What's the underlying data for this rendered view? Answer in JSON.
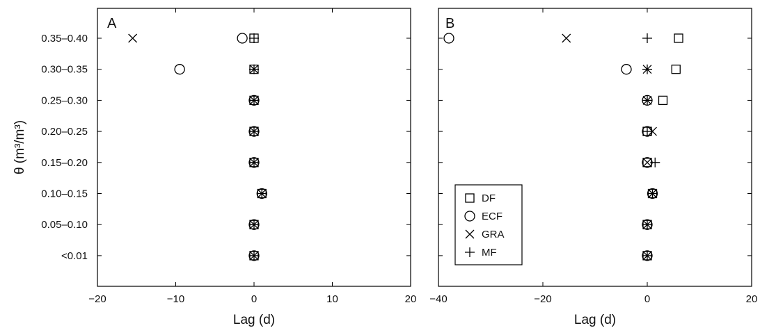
{
  "chart_data": [
    {
      "type": "scatter",
      "panel_label": "A",
      "xlabel": "Lag (d)",
      "ylabel": "θ (m³/m³)",
      "xlim": [
        -20,
        20
      ],
      "xticks": [
        -20,
        -10,
        0,
        10,
        20
      ],
      "xtick_labels": [
        "−20",
        "−10",
        "0",
        "10",
        "20"
      ],
      "categories": [
        "0.35–0.40",
        "0.30–0.35",
        "0.25–0.30",
        "0.20–0.25",
        "0.15–0.20",
        "0.10–0.15",
        "0.05–0.10",
        "<0.01"
      ],
      "series": [
        {
          "name": "DF",
          "marker": "square",
          "x": [
            0,
            0,
            0,
            0,
            0,
            1,
            0,
            0
          ]
        },
        {
          "name": "ECF",
          "marker": "circle",
          "x": [
            -1.5,
            -9.5,
            0,
            0,
            0,
            1,
            0,
            0
          ]
        },
        {
          "name": "GRA",
          "marker": "cross",
          "x": [
            -15.5,
            0,
            0,
            0,
            0,
            1,
            0,
            0
          ]
        },
        {
          "name": "MF",
          "marker": "plus",
          "x": [
            0,
            0,
            0,
            0,
            0,
            1,
            0,
            0
          ]
        }
      ],
      "grid": false
    },
    {
      "type": "scatter",
      "panel_label": "B",
      "xlabel": "Lag (d)",
      "ylabel": "",
      "xlim": [
        -40,
        20
      ],
      "xticks": [
        -40,
        -20,
        0,
        20
      ],
      "xtick_labels": [
        "−40",
        "−20",
        "0",
        "20"
      ],
      "categories": [
        "0.35–0.40",
        "0.30–0.35",
        "0.25–0.30",
        "0.20–0.25",
        "0.15–0.20",
        "0.10–0.15",
        "0.05–0.10",
        "<0.01"
      ],
      "series": [
        {
          "name": "DF",
          "marker": "square",
          "x": [
            6,
            5.5,
            3,
            0,
            0,
            1,
            0,
            0
          ]
        },
        {
          "name": "ECF",
          "marker": "circle",
          "x": [
            -38,
            -4,
            0,
            0,
            0,
            1,
            0,
            0
          ]
        },
        {
          "name": "GRA",
          "marker": "cross",
          "x": [
            -15.5,
            0,
            0,
            1,
            0,
            1,
            0,
            0
          ]
        },
        {
          "name": "MF",
          "marker": "plus",
          "x": [
            0,
            0,
            0,
            0,
            1.5,
            1,
            0,
            0
          ]
        }
      ],
      "legend": {
        "placement": "lower-left",
        "entries": [
          "DF",
          "ECF",
          "GRA",
          "MF"
        ]
      },
      "grid": false
    }
  ]
}
